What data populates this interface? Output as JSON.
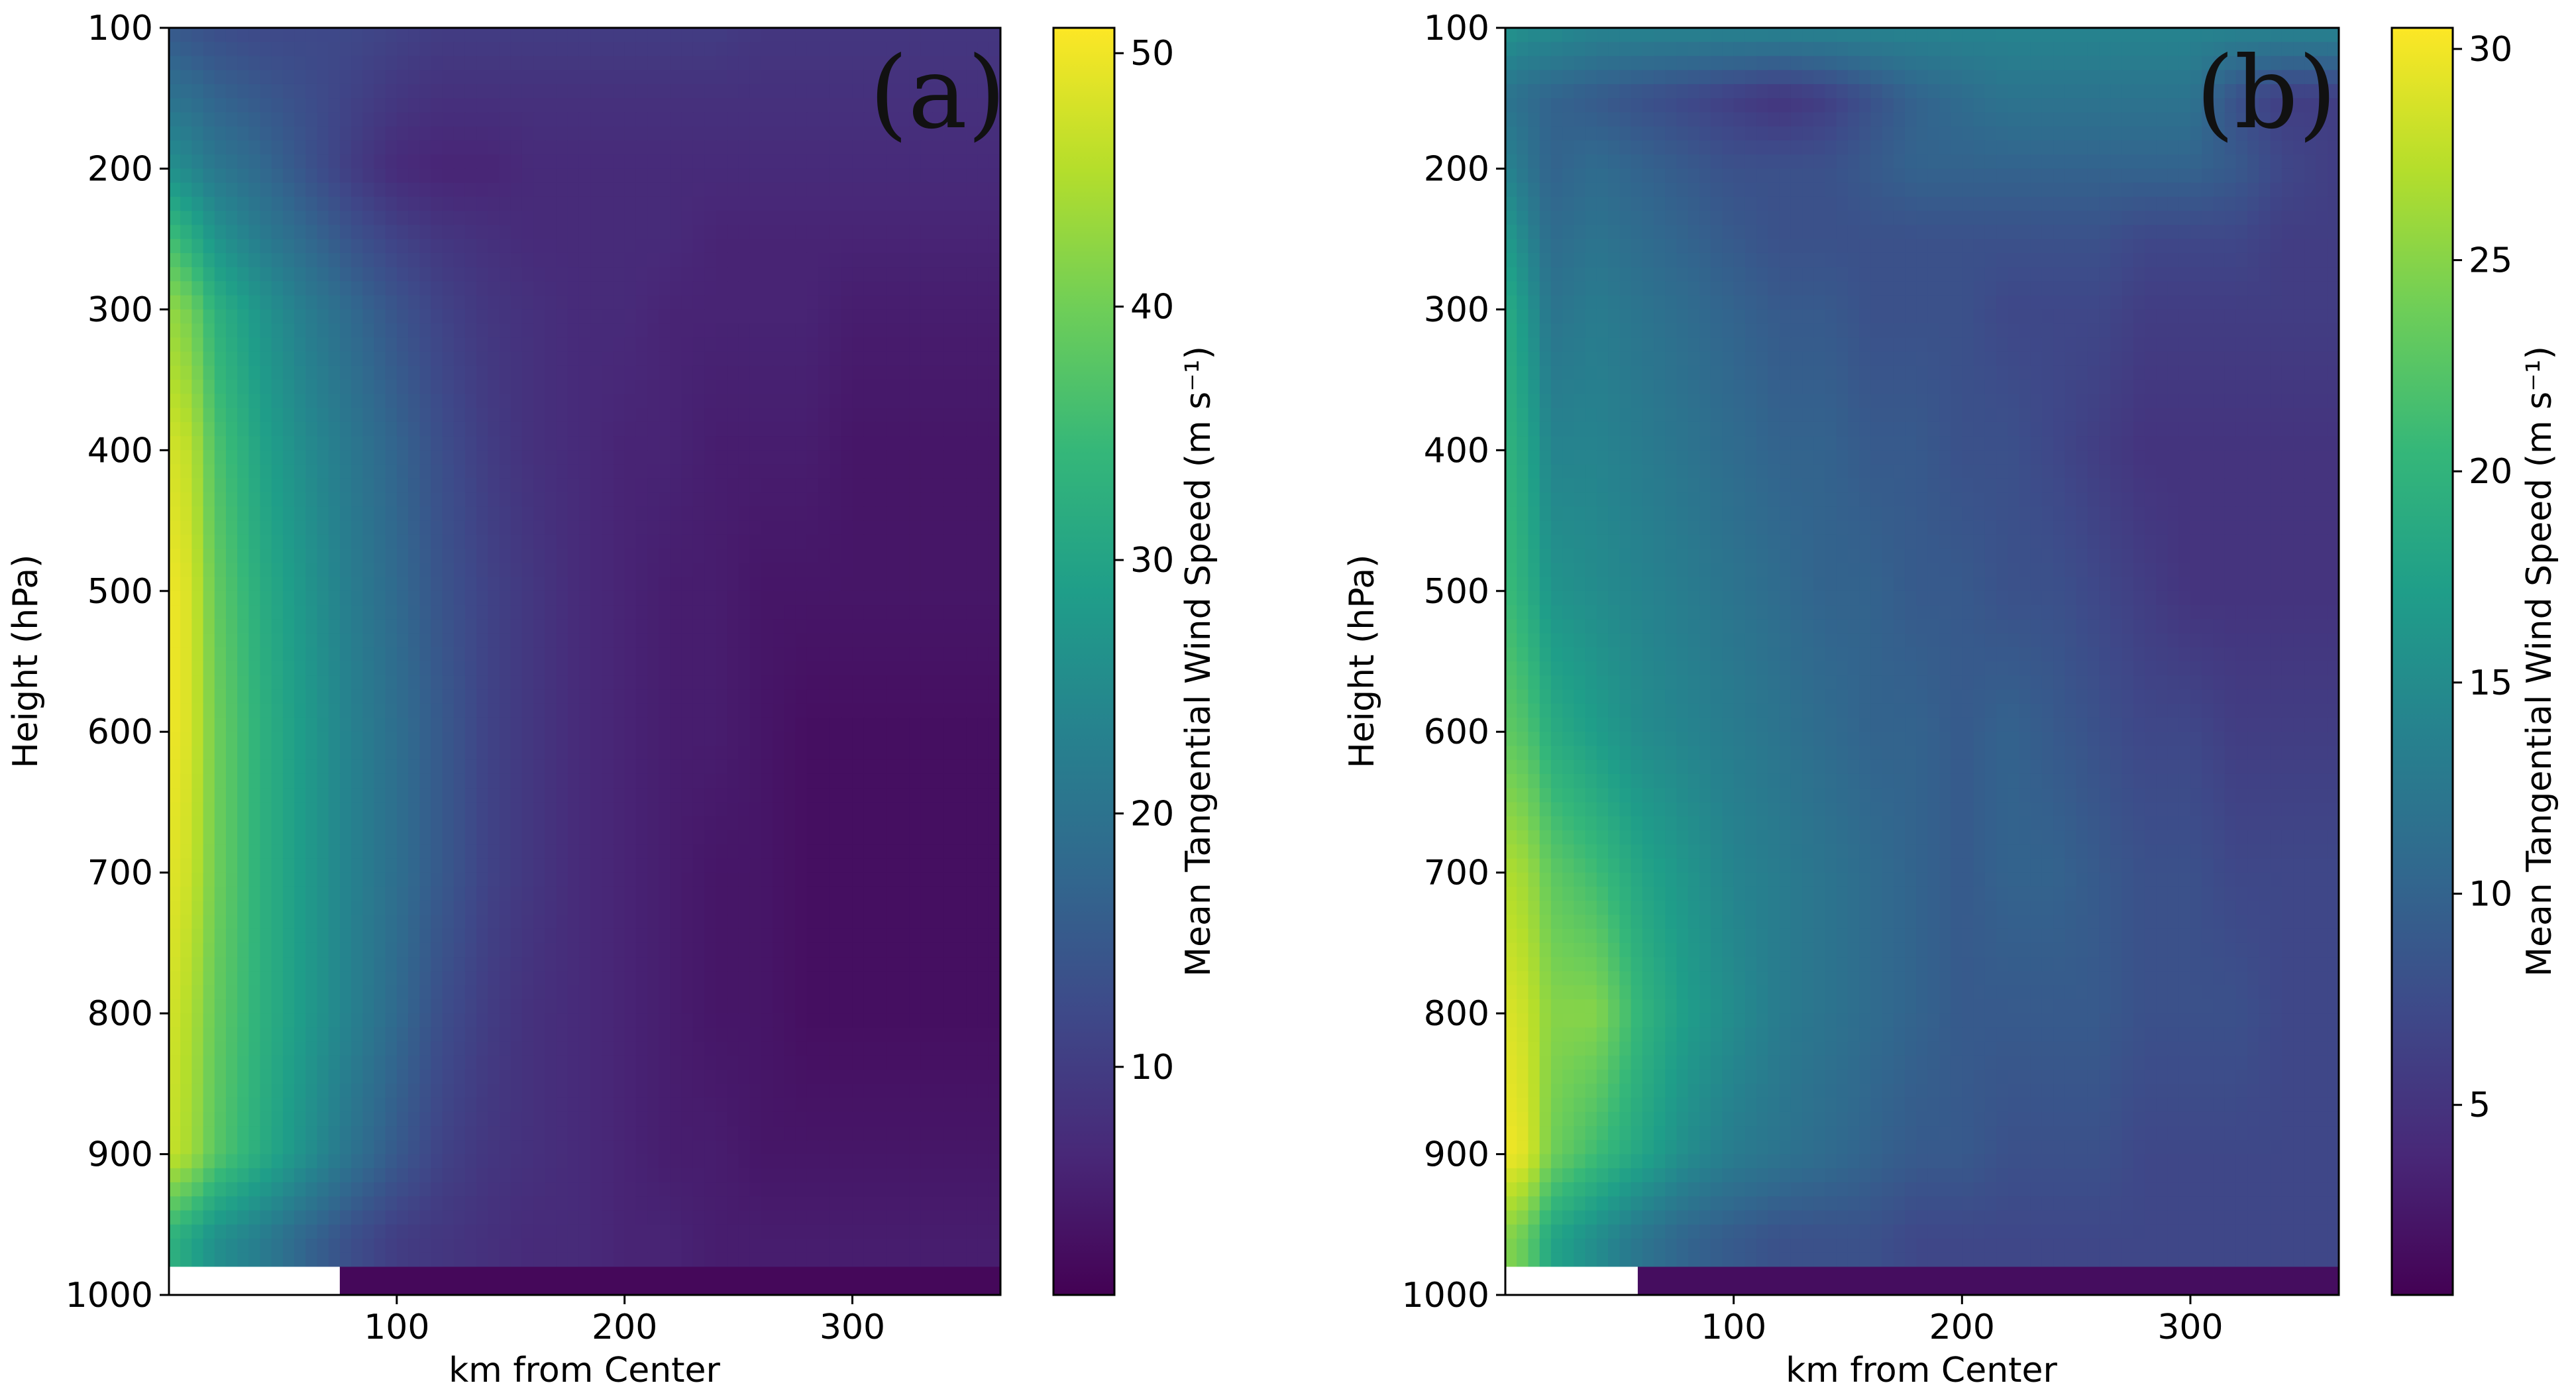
{
  "figure": {
    "panels": [
      "a",
      "b"
    ]
  },
  "colormap": {
    "name": "viridis",
    "stops": [
      "#440154",
      "#482878",
      "#3e4989",
      "#31688e",
      "#26828e",
      "#1f9e89",
      "#35b779",
      "#6ece58",
      "#b5de2b",
      "#fde725"
    ]
  },
  "chart_data": [
    {
      "type": "heatmap",
      "panel_label": "(a)",
      "xlabel": "km from Center",
      "ylabel": "Height (hPa)",
      "colorbar_label": "Mean Tangential Wind Speed (m s⁻¹)",
      "x_range": [
        0,
        365
      ],
      "y_range": [
        1000,
        100
      ],
      "x_ticks": [
        100,
        200,
        300
      ],
      "x_tick_labels": [
        "100",
        "200",
        "300"
      ],
      "y_ticks": [
        100,
        200,
        300,
        400,
        500,
        600,
        700,
        800,
        900,
        1000
      ],
      "y_tick_labels": [
        "100",
        "200",
        "300",
        "400",
        "500",
        "600",
        "700",
        "800",
        "900",
        "1000"
      ],
      "colorbar_range": [
        1,
        51
      ],
      "colorbar_ticks": [
        10,
        20,
        30,
        40,
        50
      ],
      "colorbar_tick_labels": [
        "10",
        "20",
        "30",
        "40",
        "50"
      ],
      "radius_km": [
        0,
        10,
        20,
        40,
        60,
        80,
        100,
        120,
        140,
        160,
        180,
        200,
        220,
        240,
        260,
        280,
        300,
        320,
        340,
        365
      ],
      "pressure_hPa": [
        100,
        150,
        200,
        250,
        300,
        400,
        500,
        600,
        700,
        800,
        900,
        960
      ],
      "speed": [
        [
          15,
          14,
          13,
          12,
          12,
          12,
          11,
          10,
          10,
          10,
          10,
          10,
          10,
          10,
          9,
          9,
          9,
          9,
          9,
          9
        ],
        [
          20,
          19,
          17,
          15,
          13,
          11,
          9,
          8,
          8,
          8,
          8,
          8,
          8,
          8,
          8,
          8,
          8,
          8,
          8,
          8
        ],
        [
          26,
          24,
          21,
          18,
          14,
          10,
          7,
          6,
          6,
          7,
          7,
          7,
          7,
          7,
          7,
          7,
          7,
          7,
          7,
          7
        ],
        [
          36,
          32,
          27,
          22,
          18,
          14,
          11,
          9,
          8,
          7,
          7,
          7,
          7,
          6,
          6,
          6,
          6,
          6,
          6,
          6
        ],
        [
          43,
          40,
          33,
          27,
          22,
          18,
          14,
          11,
          9,
          8,
          7,
          7,
          6,
          6,
          6,
          6,
          5,
          5,
          5,
          5
        ],
        [
          48,
          46,
          37,
          30,
          25,
          21,
          17,
          13,
          10,
          8,
          7,
          6,
          6,
          5,
          5,
          5,
          4,
          4,
          4,
          4
        ],
        [
          50,
          48,
          39,
          32,
          27,
          22,
          18,
          14,
          11,
          9,
          7,
          6,
          5,
          5,
          4,
          4,
          4,
          4,
          4,
          4
        ],
        [
          50,
          48,
          40,
          33,
          28,
          23,
          19,
          15,
          11,
          9,
          7,
          6,
          5,
          5,
          4,
          3,
          3,
          3,
          3,
          3
        ],
        [
          49,
          47,
          40,
          33,
          28,
          23,
          19,
          15,
          11,
          9,
          7,
          6,
          5,
          4,
          4,
          3,
          3,
          3,
          3,
          3
        ],
        [
          48,
          45,
          39,
          33,
          28,
          23,
          18,
          13,
          10,
          8,
          7,
          6,
          5,
          4,
          4,
          3,
          3,
          3,
          3,
          3
        ],
        [
          47,
          44,
          38,
          32,
          26,
          20,
          15,
          11,
          9,
          8,
          7,
          6,
          5,
          5,
          4,
          4,
          4,
          4,
          4,
          4
        ],
        [
          33,
          30,
          26,
          22,
          17,
          13,
          10,
          9,
          8,
          7,
          7,
          6,
          6,
          5,
          5,
          5,
          5,
          5,
          5,
          5
        ]
      ],
      "surface_row": {
        "pressure_hPa": [
          980,
          1000
        ],
        "masked_until_km": 75,
        "speed": 2
      }
    },
    {
      "type": "heatmap",
      "panel_label": "(b)",
      "xlabel": "km from Center",
      "ylabel": "Height (hPa)",
      "colorbar_label": "Mean Tangential Wind Speed (m s⁻¹)",
      "x_range": [
        0,
        365
      ],
      "y_range": [
        1000,
        100
      ],
      "x_ticks": [
        100,
        200,
        300
      ],
      "x_tick_labels": [
        "100",
        "200",
        "300"
      ],
      "y_ticks": [
        100,
        200,
        300,
        400,
        500,
        600,
        700,
        800,
        900,
        1000
      ],
      "y_tick_labels": [
        "100",
        "200",
        "300",
        "400",
        "500",
        "600",
        "700",
        "800",
        "900",
        "1000"
      ],
      "colorbar_range": [
        0.5,
        30.5
      ],
      "colorbar_ticks": [
        5,
        10,
        15,
        20,
        25,
        30
      ],
      "colorbar_tick_labels": [
        "5",
        "10",
        "15",
        "20",
        "25",
        "30"
      ],
      "radius_km": [
        0,
        10,
        20,
        40,
        60,
        80,
        100,
        120,
        140,
        160,
        180,
        200,
        220,
        240,
        260,
        280,
        300,
        320,
        340,
        365
      ],
      "pressure_hPa": [
        100,
        150,
        200,
        250,
        300,
        400,
        500,
        600,
        700,
        800,
        900,
        960
      ],
      "speed": [
        [
          16,
          15,
          15,
          14,
          14,
          14,
          14,
          14,
          14,
          14,
          14,
          14,
          14,
          14,
          14,
          14,
          14,
          14,
          14,
          14
        ],
        [
          12,
          11,
          10,
          9,
          8,
          7,
          6,
          5,
          6,
          8,
          10,
          11,
          12,
          12,
          12,
          12,
          12,
          8,
          6,
          6
        ],
        [
          14,
          12,
          10,
          11,
          10,
          9,
          8,
          8,
          8,
          9,
          10,
          10,
          10,
          10,
          10,
          10,
          10,
          9,
          7,
          6
        ],
        [
          17,
          14,
          11,
          12,
          11,
          10,
          9,
          8,
          8,
          8,
          8,
          8,
          8,
          8,
          8,
          7,
          7,
          7,
          6,
          6
        ],
        [
          19,
          16,
          12,
          13,
          12,
          11,
          10,
          9,
          9,
          8,
          8,
          8,
          7,
          7,
          7,
          6,
          6,
          6,
          6,
          6
        ],
        [
          20,
          18,
          14,
          14,
          13,
          12,
          11,
          10,
          10,
          9,
          9,
          8,
          8,
          7,
          6,
          5,
          5,
          5,
          5,
          5
        ],
        [
          21,
          19,
          16,
          15,
          14,
          13,
          12,
          11,
          10,
          10,
          9,
          9,
          8,
          8,
          7,
          6,
          5,
          5,
          5,
          5
        ],
        [
          23,
          22,
          19,
          17,
          15,
          14,
          13,
          12,
          11,
          10,
          10,
          9,
          10,
          9,
          8,
          7,
          7,
          6,
          6,
          6
        ],
        [
          27,
          26,
          23,
          21,
          18,
          16,
          14,
          13,
          12,
          11,
          10,
          9,
          10,
          10,
          9,
          8,
          8,
          7,
          7,
          7
        ],
        [
          29,
          28,
          25,
          25,
          20,
          17,
          15,
          13,
          12,
          11,
          10,
          9,
          9,
          9,
          9,
          8,
          8,
          8,
          7,
          7
        ],
        [
          30,
          29,
          24,
          21,
          18,
          15,
          13,
          12,
          11,
          10,
          9,
          9,
          8,
          8,
          8,
          7,
          7,
          7,
          7,
          7
        ],
        [
          25,
          23,
          18,
          15,
          12,
          10,
          9,
          8,
          8,
          8,
          7,
          7,
          7,
          7,
          7,
          7,
          7,
          7,
          7,
          7
        ]
      ],
      "surface_row": {
        "pressure_hPa": [
          980,
          1000
        ],
        "masked_until_km": 58,
        "speed": 1.5
      }
    }
  ]
}
